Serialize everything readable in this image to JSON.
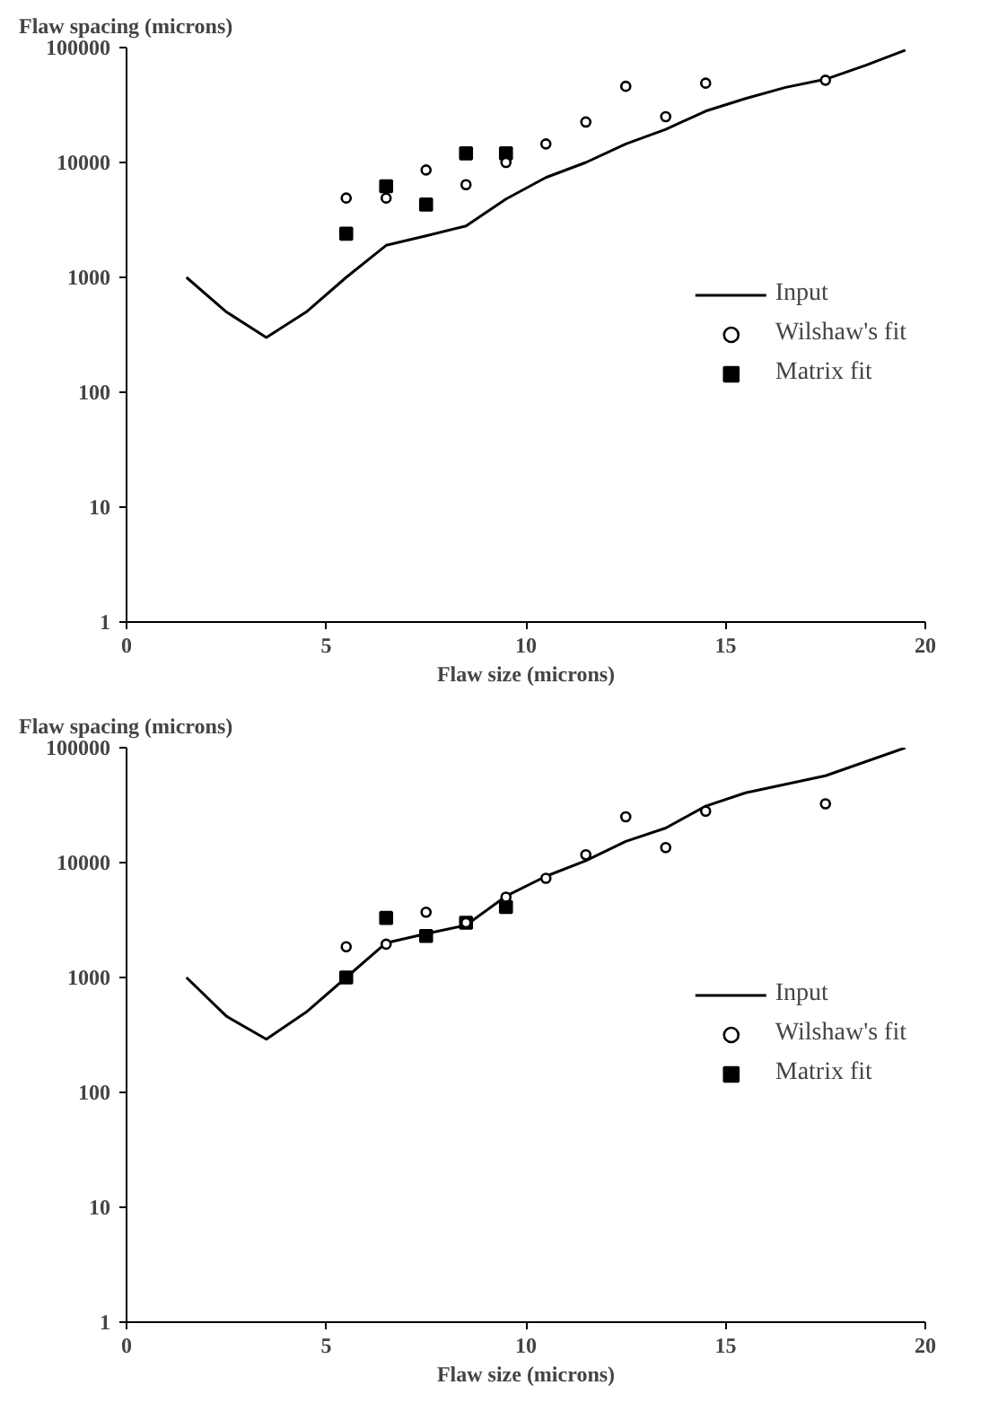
{
  "chart_data": [
    {
      "type": "scatter",
      "ylabel": "Flaw spacing (microns)",
      "xlabel": "Flaw size (microns)",
      "log": "y",
      "xlim": [
        0,
        20
      ],
      "xticks": [
        0,
        5,
        10,
        15,
        20
      ],
      "ylim": [
        1,
        100000
      ],
      "yticks": [
        1,
        10,
        100,
        1000,
        10000,
        100000
      ],
      "grid": false,
      "legend": "center right",
      "series": [
        {
          "name": "Input",
          "type": "line",
          "marker": "none",
          "color": "#000000",
          "x": [
            1.5,
            2.5,
            3.5,
            4.5,
            5.5,
            6.5,
            7.5,
            8.5,
            9.5,
            10.5,
            11.5,
            12.5,
            13.5,
            14.5,
            15.5,
            16.5,
            17.5,
            18.5,
            19.5
          ],
          "values": [
            1000,
            500,
            300,
            500,
            1000,
            1900,
            2300,
            2800,
            4800,
            7400,
            10000,
            14500,
            19400,
            28000,
            36000,
            45000,
            53000,
            70000,
            95000
          ]
        },
        {
          "name": "Wilshaw's fit",
          "marker": "circle",
          "color": "#000000",
          "x": [
            5.5,
            6.5,
            7.5,
            8.5,
            9.5,
            10.5,
            11.5,
            12.5,
            13.5,
            14.5,
            17.5
          ],
          "values": [
            4900,
            4900,
            8600,
            6400,
            10000,
            14500,
            22500,
            46000,
            25000,
            49000,
            52000
          ]
        },
        {
          "name": "Matrix fit",
          "marker": "square",
          "color": "#000000",
          "x": [
            5.5,
            6.5,
            7.5,
            8.5,
            9.5
          ],
          "values": [
            2400,
            6200,
            4300,
            12000,
            12000
          ]
        }
      ]
    },
    {
      "type": "scatter",
      "ylabel": "Flaw spacing (microns)",
      "xlabel": "Flaw size (microns)",
      "log": "y",
      "xlim": [
        0,
        20
      ],
      "xticks": [
        0,
        5,
        10,
        15,
        20
      ],
      "ylim": [
        1,
        100000
      ],
      "yticks": [
        1,
        10,
        100,
        1000,
        10000,
        100000
      ],
      "grid": false,
      "legend": "center right",
      "series": [
        {
          "name": "Input",
          "type": "line",
          "marker": "none",
          "color": "#000000",
          "x": [
            1.5,
            2.5,
            3.5,
            4.5,
            5.5,
            6.5,
            7.5,
            8.5,
            9.5,
            10.5,
            11.5,
            12.5,
            13.5,
            14.5,
            15.5,
            17.5,
            19.5
          ],
          "values": [
            1000,
            460,
            290,
            500,
            1000,
            2000,
            2400,
            2850,
            5100,
            7600,
            10400,
            15300,
            20000,
            31000,
            40500,
            57000,
            100000
          ]
        },
        {
          "name": "Wilshaw's fit",
          "marker": "circle",
          "color": "#000000",
          "x": [
            5.5,
            6.5,
            7.5,
            8.5,
            9.5,
            10.5,
            11.5,
            12.5,
            13.5,
            14.5,
            17.5
          ],
          "values": [
            1850,
            1950,
            3700,
            3000,
            5000,
            7300,
            11700,
            25000,
            13500,
            28000,
            32500
          ]
        },
        {
          "name": "Matrix fit",
          "marker": "square",
          "color": "#000000",
          "x": [
            5.5,
            6.5,
            7.5,
            8.5,
            9.5
          ],
          "values": [
            1000,
            3300,
            2300,
            3000,
            4100
          ]
        }
      ]
    }
  ]
}
